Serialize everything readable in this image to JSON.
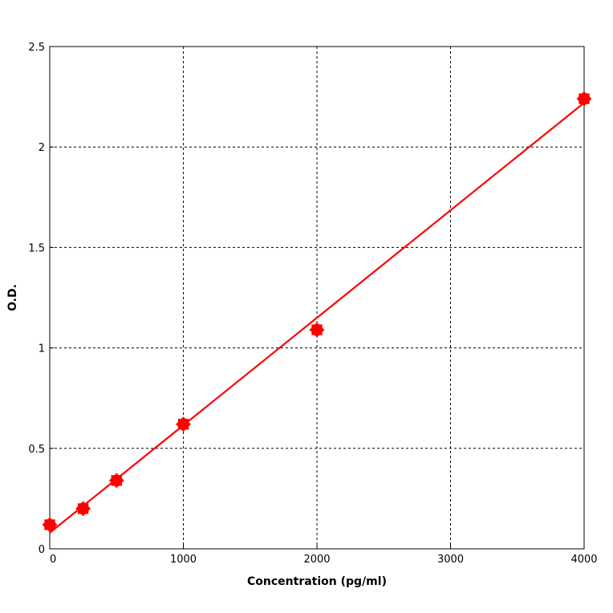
{
  "chart_data": {
    "type": "scatter",
    "title": "",
    "xlabel": "Concentration (pg/ml)",
    "ylabel": "O.D.",
    "xlim": [
      0,
      4000
    ],
    "ylim": [
      0,
      2.5
    ],
    "x_ticks": [
      0,
      1000,
      2000,
      3000,
      4000
    ],
    "x_tick_labels": [
      "0",
      "1000",
      "2000",
      "3000",
      "4000"
    ],
    "y_ticks": [
      0,
      0.5,
      1,
      1.5,
      2,
      2.5
    ],
    "y_tick_labels": [
      "0",
      "0.5",
      "1",
      "1.5",
      "2",
      "2.5"
    ],
    "grid": true,
    "legend": "none",
    "color": "#ff0000",
    "points": [
      {
        "x": 0,
        "y": 0.12
      },
      {
        "x": 250,
        "y": 0.2
      },
      {
        "x": 500,
        "y": 0.34
      },
      {
        "x": 1000,
        "y": 0.62
      },
      {
        "x": 2000,
        "y": 1.09
      },
      {
        "x": 4000,
        "y": 2.24
      }
    ],
    "fit_line": {
      "x": [
        0,
        4000
      ],
      "y": [
        0.08,
        2.22
      ]
    }
  }
}
